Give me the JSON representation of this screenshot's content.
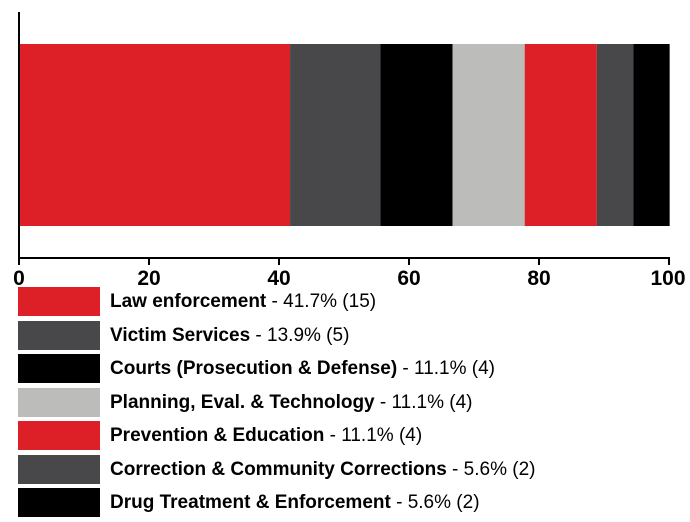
{
  "chart_data": {
    "type": "bar",
    "orientation": "horizontal",
    "stacked": true,
    "xlim": [
      0,
      100
    ],
    "xticks": [
      "0",
      "20",
      "40",
      "60",
      "80",
      "100"
    ],
    "series": [
      {
        "name": "Law enforcement",
        "value": 41.7,
        "count": 15,
        "color": "#dd2027",
        "legend_label": "Law enforcement",
        "legend_value": " - 41.7% (15)"
      },
      {
        "name": "Victim Services",
        "value": 13.9,
        "count": 5,
        "color": "#48484a",
        "legend_label": "Victim Services",
        "legend_value": " - 13.9% (5)"
      },
      {
        "name": "Courts (Prosecution & Defense)",
        "value": 11.1,
        "count": 4,
        "color": "#000000",
        "legend_label": "Courts (Prosecution & Defense)",
        "legend_value": " - 11.1% (4)"
      },
      {
        "name": "Planning, Eval. & Technology",
        "value": 11.1,
        "count": 4,
        "color": "#bcbcbb",
        "legend_label": "Planning, Eval. & Technology",
        "legend_value": " - 11.1% (4)"
      },
      {
        "name": "Prevention & Education",
        "value": 11.1,
        "count": 4,
        "color": "#dd2027",
        "legend_label": "Prevention & Education",
        "legend_value": " - 11.1% (4)"
      },
      {
        "name": "Correction & Community Corrections",
        "value": 5.6,
        "count": 2,
        "color": "#48484a",
        "legend_label": "Correction & Community Corrections",
        "legend_value": " - 5.6% (2)"
      },
      {
        "name": "Drug Treatment & Enforcement",
        "value": 5.6,
        "count": 2,
        "color": "#000000",
        "legend_label": "Drug Treatment & Enforcement",
        "legend_value": " - 5.6% (2)"
      }
    ],
    "grid": false,
    "legend_position": "bottom"
  }
}
